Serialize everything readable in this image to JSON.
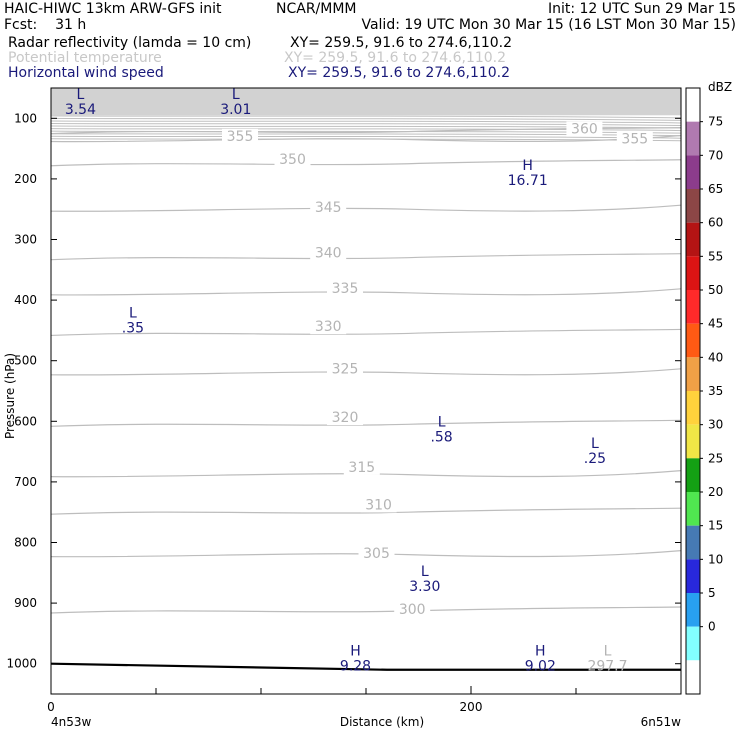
{
  "header": {
    "title": "HAIC-HIWC 13km ARW-GFS init",
    "org": "NCAR/MMM",
    "init": "Init: 12 UTC Sun 29 Mar 15",
    "fcst_label": "Fcst:",
    "fcst_value": "31 h",
    "valid": "Valid: 19 UTC Mon 30 Mar 15 (16 LST Mon 30 Mar 15)",
    "fields": [
      {
        "name": "Radar reflectivity (lamda = 10 cm)",
        "xy": "XY= 259.5, 91.6 to 274.6,110.2",
        "color": "#000000"
      },
      {
        "name": "Potential temperature",
        "xy": "XY= 259.5, 91.6 to 274.6,110.2",
        "color": "#c8c8c8"
      },
      {
        "name": "Horizontal wind speed",
        "xy": "XY= 259.5, 91.6 to 274.6,110.2",
        "color": "#1a1a7a"
      }
    ]
  },
  "chart_data": {
    "type": "cross-section",
    "ylabel": "Pressure (hPa)",
    "xlabel": "Distance (km)",
    "x_start_label": "4n53w",
    "x_end_label": "6n51w",
    "xlim": [
      0,
      300
    ],
    "ylim": [
      1050,
      50
    ],
    "y_ticks": [
      100,
      200,
      300,
      400,
      500,
      600,
      700,
      800,
      900,
      1000
    ],
    "x_tick_labels": [
      {
        "x": 0,
        "label": "0"
      },
      {
        "x": 200,
        "label": "200"
      }
    ],
    "x_minor_ticks": [
      50,
      100,
      150,
      250
    ],
    "theta_contours": [
      {
        "value": "300",
        "label_x": 172,
        "label_p": 915
      },
      {
        "value": "305",
        "label_x": 155,
        "label_p": 822
      },
      {
        "value": "310",
        "label_x": 156,
        "label_p": 742
      },
      {
        "value": "315",
        "label_x": 148,
        "label_p": 680
      },
      {
        "value": "320",
        "label_x": 140,
        "label_p": 598
      },
      {
        "value": "325",
        "label_x": 140,
        "label_p": 518
      },
      {
        "value": "330",
        "label_x": 132,
        "label_p": 448
      },
      {
        "value": "335",
        "label_x": 140,
        "label_p": 385
      },
      {
        "value": "340",
        "label_x": 132,
        "label_p": 326
      },
      {
        "value": "345",
        "label_x": 132,
        "label_p": 251
      },
      {
        "value": "350",
        "label_x": 115,
        "label_p": 172
      },
      {
        "value": "355",
        "label_x": 90,
        "label_p": 134
      },
      {
        "value": "360",
        "label_x": 254,
        "label_p": 122
      },
      {
        "value": "355",
        "label_x": 278,
        "label_p": 138
      }
    ],
    "wind_extrema": [
      {
        "type": "L",
        "value": "3.54",
        "x": 14,
        "p": 80
      },
      {
        "type": "L",
        "value": "3.01",
        "x": 88,
        "p": 80
      },
      {
        "type": "H",
        "value": "16.71",
        "x": 227,
        "p": 197
      },
      {
        "type": "L",
        "value": ".35",
        "x": 39,
        "p": 440
      },
      {
        "type": "L",
        "value": ".58",
        "x": 186,
        "p": 620
      },
      {
        "type": "L",
        "value": ".25",
        "x": 259,
        "p": 656
      },
      {
        "type": "L",
        "value": "3.30",
        "x": 178,
        "p": 867
      },
      {
        "type": "H",
        "value": "9.28",
        "x": 145,
        "p": 998
      },
      {
        "type": "H",
        "value": "9.02",
        "x": 233,
        "p": 998
      }
    ],
    "theta_extrema": [
      {
        "type": "L",
        "value": "297.7",
        "x": 265,
        "p": 998,
        "color": "#c8c8c8"
      }
    ],
    "colorbar": {
      "unit": "dBZ",
      "labels": [
        "75",
        "70",
        "65",
        "60",
        "55",
        "50",
        "45",
        "40",
        "35",
        "30",
        "25",
        "20",
        "15",
        "10",
        "5",
        "0"
      ],
      "colors": [
        "#ffffff",
        "#b07ab0",
        "#8c3c8c",
        "#8c4646",
        "#b41414",
        "#dc1414",
        "#ff2a2a",
        "#ff5a14",
        "#f0a046",
        "#ffd23c",
        "#f0e646",
        "#14a014",
        "#50e650",
        "#467ab4",
        "#2828dc",
        "#28a0f0",
        "#82ffff",
        "#ffffff"
      ]
    }
  }
}
